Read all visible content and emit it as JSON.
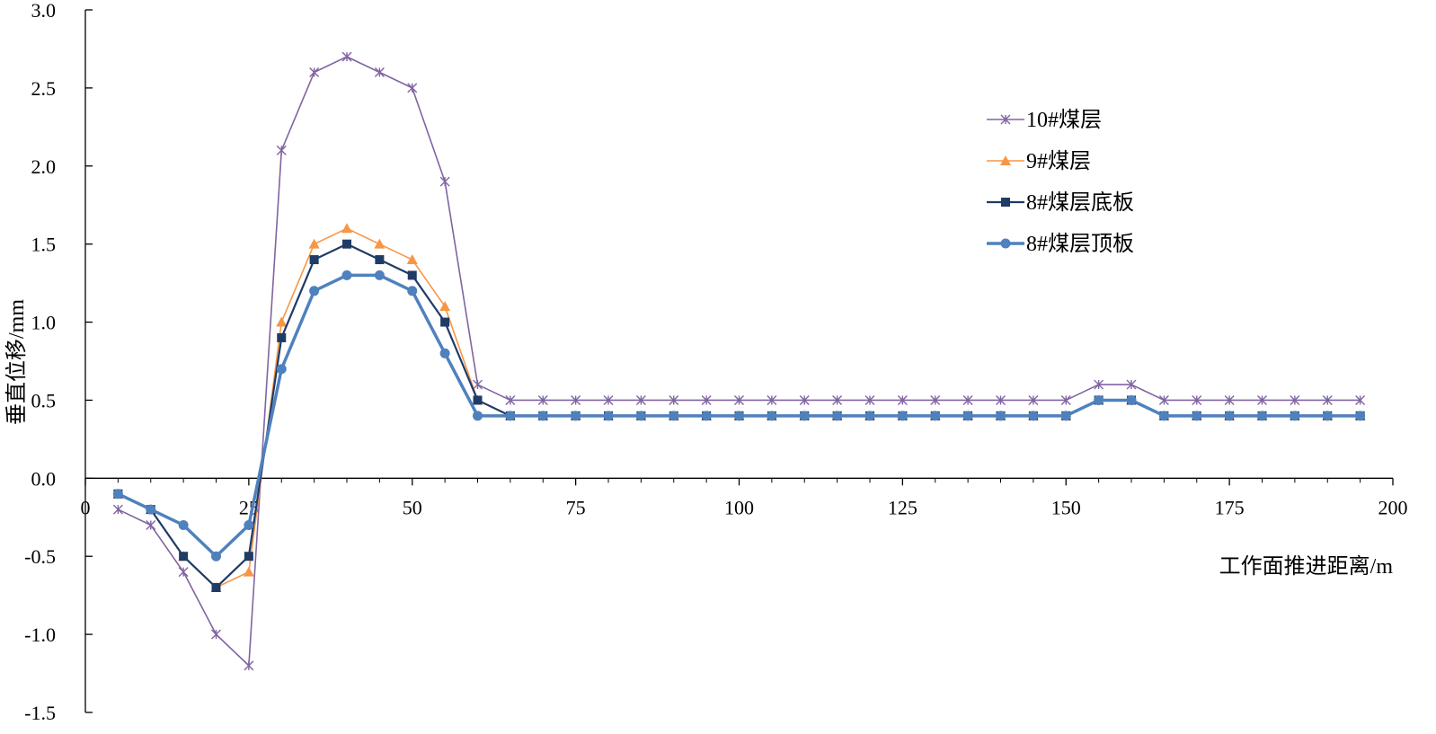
{
  "chart_data": {
    "type": "line",
    "title": "",
    "xlabel": "工作面推进距离/m",
    "ylabel": "垂直位移/mm",
    "xlim": [
      0,
      200
    ],
    "ylim": [
      -1.5,
      3.0
    ],
    "x_ticks": [
      "0",
      "25",
      "50",
      "75",
      "100",
      "125",
      "150",
      "175",
      "200"
    ],
    "y_ticks": [
      "3.0",
      "2.5",
      "2.0",
      "1.5",
      "1.0",
      "0.5",
      "0.0",
      "-0.5",
      "-1.0",
      "-1.5"
    ],
    "grid": false,
    "legend_position": "top-right",
    "x": [
      5,
      10,
      15,
      20,
      25,
      30,
      35,
      40,
      45,
      50,
      55,
      60,
      65,
      70,
      75,
      80,
      85,
      90,
      95,
      100,
      105,
      110,
      115,
      120,
      125,
      130,
      135,
      140,
      145,
      150,
      155,
      160,
      165,
      170,
      175,
      180,
      185,
      190,
      195
    ],
    "series": [
      {
        "name": "10#煤层",
        "color": "#8064a2",
        "marker": "star",
        "values": [
          -0.2,
          -0.3,
          -0.6,
          -1.0,
          -1.2,
          2.1,
          2.6,
          2.7,
          2.6,
          2.5,
          1.9,
          0.6,
          0.5,
          0.5,
          0.5,
          0.5,
          0.5,
          0.5,
          0.5,
          0.5,
          0.5,
          0.5,
          0.5,
          0.5,
          0.5,
          0.5,
          0.5,
          0.5,
          0.5,
          0.5,
          0.6,
          0.6,
          0.5,
          0.5,
          0.5,
          0.5,
          0.5,
          0.5,
          0.5
        ]
      },
      {
        "name": "9#煤层",
        "color": "#f79646",
        "marker": "triangle",
        "values": [
          -0.1,
          -0.2,
          -0.5,
          -0.7,
          -0.6,
          1.0,
          1.5,
          1.6,
          1.5,
          1.4,
          1.1,
          0.5,
          0.4,
          0.4,
          0.4,
          0.4,
          0.4,
          0.4,
          0.4,
          0.4,
          0.4,
          0.4,
          0.4,
          0.4,
          0.4,
          0.4,
          0.4,
          0.4,
          0.4,
          0.4,
          0.5,
          0.5,
          0.4,
          0.4,
          0.4,
          0.4,
          0.4,
          0.4,
          0.4
        ]
      },
      {
        "name": "8#煤层底板",
        "color": "#1f3b66",
        "marker": "square",
        "values": [
          -0.1,
          -0.2,
          -0.5,
          -0.7,
          -0.5,
          0.9,
          1.4,
          1.5,
          1.4,
          1.3,
          1.0,
          0.5,
          0.4,
          0.4,
          0.4,
          0.4,
          0.4,
          0.4,
          0.4,
          0.4,
          0.4,
          0.4,
          0.4,
          0.4,
          0.4,
          0.4,
          0.4,
          0.4,
          0.4,
          0.4,
          0.5,
          0.5,
          0.4,
          0.4,
          0.4,
          0.4,
          0.4,
          0.4,
          0.4
        ]
      },
      {
        "name": "8#煤层顶板",
        "color": "#4f81bd",
        "marker": "circle",
        "values": [
          -0.1,
          -0.2,
          -0.3,
          -0.5,
          -0.3,
          0.7,
          1.2,
          1.3,
          1.3,
          1.2,
          0.8,
          0.4,
          0.4,
          0.4,
          0.4,
          0.4,
          0.4,
          0.4,
          0.4,
          0.4,
          0.4,
          0.4,
          0.4,
          0.4,
          0.4,
          0.4,
          0.4,
          0.4,
          0.4,
          0.4,
          0.5,
          0.5,
          0.4,
          0.4,
          0.4,
          0.4,
          0.4,
          0.4,
          0.4
        ]
      }
    ]
  }
}
